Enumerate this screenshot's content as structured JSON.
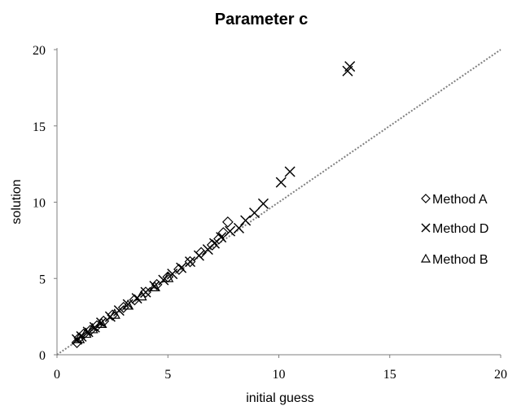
{
  "chart_data": {
    "type": "scatter",
    "title": "Parameter c",
    "xlabel": "initial guess",
    "ylabel": "solution",
    "xlim": [
      0,
      20
    ],
    "ylim": [
      0,
      20
    ],
    "x_ticks": [
      "0",
      "5",
      "10",
      "15",
      "20"
    ],
    "y_ticks": [
      "0",
      "5",
      "10",
      "15",
      "20"
    ],
    "reference_line": {
      "style": "dotted",
      "color": "#808080",
      "from": [
        0,
        0
      ],
      "to": [
        20,
        20
      ]
    },
    "grid": false,
    "legend_position": "right",
    "series": [
      {
        "name": "Method A",
        "marker": "diamond",
        "points": [
          [
            0.9,
            0.8
          ],
          [
            1.0,
            1.1
          ],
          [
            1.2,
            1.35
          ],
          [
            1.5,
            1.6
          ],
          [
            1.8,
            1.9
          ],
          [
            2.1,
            2.2
          ],
          [
            2.5,
            2.6
          ],
          [
            3.0,
            3.1
          ],
          [
            3.5,
            3.6
          ],
          [
            4.0,
            4.1
          ],
          [
            4.5,
            4.6
          ],
          [
            5.0,
            5.1
          ],
          [
            5.5,
            5.6
          ],
          [
            6.0,
            6.1
          ],
          [
            6.5,
            6.7
          ],
          [
            7.0,
            7.2
          ],
          [
            7.3,
            7.6
          ],
          [
            7.5,
            8.0
          ],
          [
            7.7,
            8.7
          ]
        ]
      },
      {
        "name": "Method D",
        "marker": "x",
        "points": [
          [
            0.9,
            1.0
          ],
          [
            1.1,
            1.2
          ],
          [
            1.4,
            1.5
          ],
          [
            1.7,
            1.8
          ],
          [
            2.0,
            2.1
          ],
          [
            2.4,
            2.5
          ],
          [
            2.8,
            2.9
          ],
          [
            3.2,
            3.3
          ],
          [
            3.6,
            3.7
          ],
          [
            4.0,
            4.1
          ],
          [
            4.4,
            4.5
          ],
          [
            4.8,
            4.9
          ],
          [
            5.2,
            5.3
          ],
          [
            5.6,
            5.7
          ],
          [
            6.0,
            6.1
          ],
          [
            6.4,
            6.5
          ],
          [
            6.8,
            6.9
          ],
          [
            7.1,
            7.3
          ],
          [
            7.4,
            7.7
          ],
          [
            7.8,
            8.1
          ],
          [
            8.2,
            8.3
          ],
          [
            8.5,
            8.8
          ],
          [
            8.9,
            9.3
          ],
          [
            9.3,
            9.9
          ],
          [
            10.1,
            11.3
          ],
          [
            10.5,
            12.0
          ],
          [
            13.1,
            18.6
          ],
          [
            13.2,
            18.9
          ]
        ]
      },
      {
        "name": "Method B",
        "marker": "triangle",
        "points": [
          [
            1.0,
            1.05
          ],
          [
            1.3,
            1.4
          ],
          [
            1.6,
            1.7
          ],
          [
            2.0,
            2.05
          ],
          [
            2.6,
            2.65
          ],
          [
            3.2,
            3.25
          ],
          [
            3.8,
            3.85
          ],
          [
            4.4,
            4.45
          ],
          [
            5.0,
            5.05
          ]
        ]
      }
    ]
  }
}
